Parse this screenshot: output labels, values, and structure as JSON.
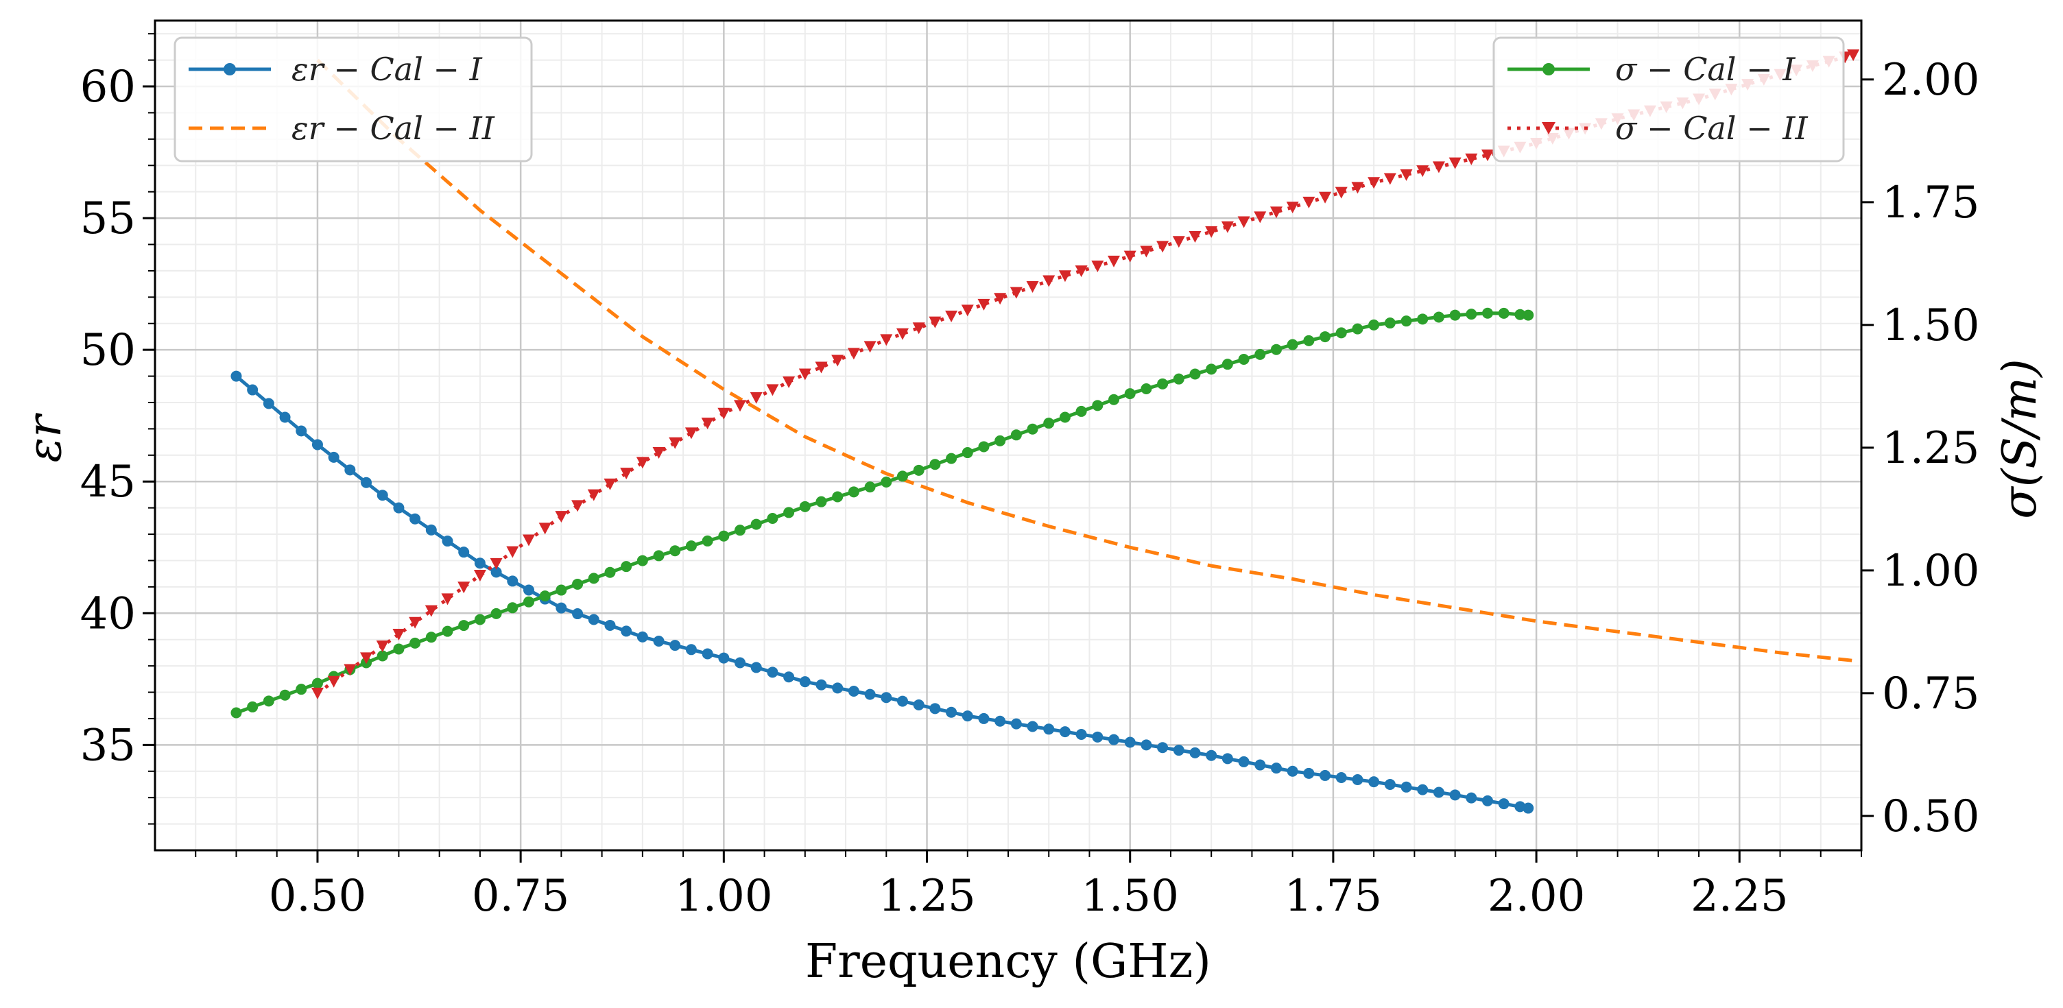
{
  "chart_data": {
    "type": "line",
    "xlabel": "Frequency (GHz)",
    "ylabel_left": "εr",
    "ylabel_right": "σ(S/m)",
    "xlim": [
      0.3,
      2.4
    ],
    "ylim_left": [
      31,
      62.5
    ],
    "ylim_right": [
      0.43,
      2.12
    ],
    "x_ticks": [
      0.5,
      0.75,
      1.0,
      1.25,
      1.5,
      1.75,
      2.0,
      2.25
    ],
    "x_tick_labels": [
      "0.50",
      "0.75",
      "1.00",
      "1.25",
      "1.50",
      "1.75",
      "2.00",
      "2.25"
    ],
    "y_left_ticks": [
      35,
      40,
      45,
      50,
      55,
      60
    ],
    "y_left_tick_labels": [
      "35",
      "40",
      "45",
      "50",
      "55",
      "60"
    ],
    "y_right_ticks": [
      0.5,
      0.75,
      1.0,
      1.25,
      1.5,
      1.75,
      2.0
    ],
    "y_right_tick_labels": [
      "0.50",
      "0.75",
      "1.00",
      "1.25",
      "1.50",
      "1.75",
      "2.00"
    ],
    "grid": true,
    "series": [
      {
        "name": "εr − Cal − I",
        "axis": "left",
        "color": "#1f77b4",
        "style": "solid-circle",
        "x": [
          0.4,
          0.5,
          0.6,
          0.7,
          0.8,
          0.9,
          1.0,
          1.1,
          1.2,
          1.3,
          1.4,
          1.5,
          1.6,
          1.7,
          1.8,
          1.9,
          1.99
        ],
        "y": [
          49.0,
          46.4,
          44.0,
          41.9,
          40.2,
          39.1,
          38.3,
          37.4,
          36.8,
          36.1,
          35.6,
          35.1,
          34.6,
          34.0,
          33.6,
          33.1,
          32.6
        ]
      },
      {
        "name": "εr − Cal − II",
        "axis": "left",
        "color": "#ff7f0e",
        "style": "dashed",
        "x": [
          0.5,
          0.6,
          0.7,
          0.8,
          0.9,
          1.0,
          1.1,
          1.2,
          1.3,
          1.4,
          1.5,
          1.6,
          1.7,
          1.8,
          1.9,
          2.0,
          2.1,
          2.2,
          2.3,
          2.39
        ],
        "y": [
          61.0,
          58.0,
          55.3,
          52.9,
          50.5,
          48.5,
          46.7,
          45.3,
          44.2,
          43.3,
          42.5,
          41.8,
          41.3,
          40.7,
          40.2,
          39.7,
          39.3,
          38.9,
          38.5,
          38.2
        ]
      },
      {
        "name": "σ − Cal − I",
        "axis": "right",
        "color": "#2ca02c",
        "style": "solid-circle",
        "x": [
          0.4,
          0.5,
          0.6,
          0.7,
          0.8,
          0.9,
          1.0,
          1.1,
          1.2,
          1.3,
          1.4,
          1.5,
          1.6,
          1.7,
          1.8,
          1.9,
          1.95,
          1.99
        ],
        "y": [
          0.71,
          0.77,
          0.84,
          0.9,
          0.96,
          1.02,
          1.07,
          1.13,
          1.18,
          1.24,
          1.3,
          1.36,
          1.41,
          1.46,
          1.5,
          1.52,
          1.525,
          1.52
        ]
      },
      {
        "name": "σ − Cal − II",
        "axis": "right",
        "color": "#d62728",
        "style": "dotted-triangle",
        "x": [
          0.5,
          0.6,
          0.7,
          0.8,
          0.9,
          1.0,
          1.1,
          1.2,
          1.3,
          1.4,
          1.5,
          1.6,
          1.7,
          1.8,
          1.9,
          2.0,
          2.1,
          2.2,
          2.3,
          2.39
        ],
        "y": [
          0.75,
          0.87,
          0.99,
          1.11,
          1.22,
          1.32,
          1.4,
          1.47,
          1.53,
          1.59,
          1.64,
          1.69,
          1.74,
          1.79,
          1.83,
          1.87,
          1.92,
          1.96,
          2.01,
          2.05
        ]
      }
    ]
  }
}
